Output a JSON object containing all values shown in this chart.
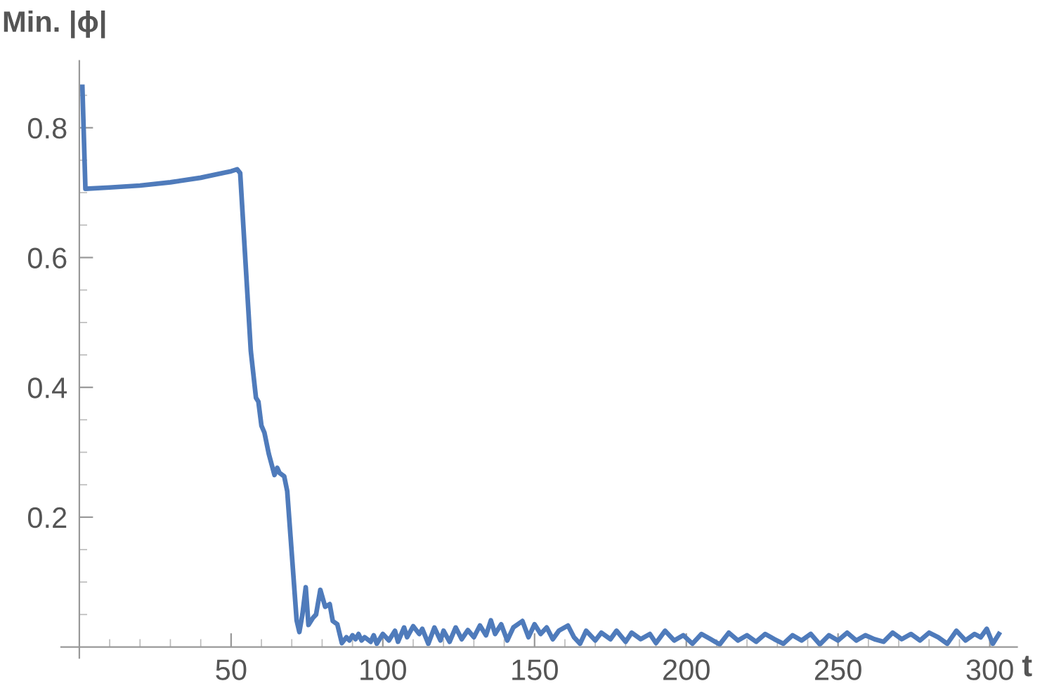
{
  "chart_data": {
    "type": "line",
    "xlabel": "t",
    "ylabel": "Min. |ϕ|",
    "xlim": [
      -6,
      309
    ],
    "ylim": [
      -0.017,
      0.903
    ],
    "xticks": [
      {
        "value": 0,
        "label": null
      },
      {
        "value": 10,
        "label": null
      },
      {
        "value": 20,
        "label": null
      },
      {
        "value": 30,
        "label": null
      },
      {
        "value": 40,
        "label": null
      },
      50,
      {
        "value": 60,
        "label": null
      },
      {
        "value": 70,
        "label": null
      },
      {
        "value": 80,
        "label": null
      },
      {
        "value": 90,
        "label": null
      },
      100,
      {
        "value": 110,
        "label": null
      },
      {
        "value": 120,
        "label": null
      },
      {
        "value": 130,
        "label": null
      },
      {
        "value": 140,
        "label": null
      },
      150,
      {
        "value": 160,
        "label": null
      },
      {
        "value": 170,
        "label": null
      },
      {
        "value": 180,
        "label": null
      },
      {
        "value": 190,
        "label": null
      },
      200,
      {
        "value": 210,
        "label": null
      },
      {
        "value": 220,
        "label": null
      },
      {
        "value": 230,
        "label": null
      },
      {
        "value": 240,
        "label": null
      },
      250,
      {
        "value": 260,
        "label": null
      },
      {
        "value": 270,
        "label": null
      },
      {
        "value": 280,
        "label": null
      },
      {
        "value": 290,
        "label": null
      },
      300
    ],
    "yticks": [
      {
        "value": 0.05,
        "label": null
      },
      {
        "value": 0.1,
        "label": null
      },
      {
        "value": 0.15,
        "label": null
      },
      0.2,
      {
        "value": 0.25,
        "label": null
      },
      {
        "value": 0.3,
        "label": null
      },
      {
        "value": 0.35,
        "label": null
      },
      0.4,
      {
        "value": 0.45,
        "label": null
      },
      {
        "value": 0.5,
        "label": null
      },
      {
        "value": 0.55,
        "label": null
      },
      0.6,
      {
        "value": 0.65,
        "label": null
      },
      {
        "value": 0.7,
        "label": null
      },
      {
        "value": 0.75,
        "label": null
      },
      0.8,
      {
        "value": 0.85,
        "label": null
      }
    ],
    "grid": false,
    "legend": false,
    "marker": "none",
    "line_style": "solid",
    "series": [
      {
        "color": "#4f7bbb",
        "x": [
          1,
          2,
          10,
          20,
          30,
          40,
          48,
          50,
          52,
          53,
          56.5,
          58.2,
          59,
          60,
          61,
          62.4,
          64.3,
          65.2,
          66,
          67.5,
          68.5,
          70.2,
          71.6,
          72.5,
          73.5,
          74.6,
          75.5,
          77,
          78,
          79.4,
          81,
          82.5,
          83.5,
          85,
          86.5,
          88,
          89,
          90,
          91,
          92,
          93,
          94,
          96,
          97,
          98,
          100,
          102,
          104,
          105,
          107,
          108,
          110,
          112,
          113,
          115,
          117,
          119,
          120,
          122,
          124,
          126,
          128,
          130,
          132,
          134,
          135.6,
          137,
          139,
          141,
          143,
          146,
          148,
          150,
          152,
          154,
          156,
          158,
          161,
          163,
          165,
          167,
          170,
          172,
          175,
          177,
          180,
          182,
          185,
          188,
          190,
          193,
          196,
          199,
          202,
          205,
          208,
          211,
          214,
          217,
          220,
          223,
          226,
          229,
          232,
          235,
          238,
          241,
          244,
          247,
          250,
          253,
          256,
          259,
          262,
          265,
          268,
          271,
          274,
          277,
          280,
          283,
          286,
          289,
          292,
          295,
          297,
          299,
          301,
          303
        ],
        "values": [
          0.863,
          0.706,
          0.708,
          0.711,
          0.716,
          0.723,
          0.731,
          0.733,
          0.736,
          0.73,
          0.456,
          0.384,
          0.378,
          0.341,
          0.33,
          0.298,
          0.265,
          0.276,
          0.268,
          0.263,
          0.24,
          0.131,
          0.041,
          0.023,
          0.05,
          0.092,
          0.034,
          0.045,
          0.05,
          0.088,
          0.062,
          0.066,
          0.04,
          0.035,
          0.006,
          0.015,
          0.01,
          0.018,
          0.012,
          0.02,
          0.01,
          0.015,
          0.008,
          0.018,
          0.005,
          0.02,
          0.01,
          0.025,
          0.008,
          0.03,
          0.015,
          0.032,
          0.02,
          0.028,
          0.005,
          0.03,
          0.01,
          0.025,
          0.008,
          0.03,
          0.012,
          0.026,
          0.015,
          0.033,
          0.018,
          0.041,
          0.02,
          0.035,
          0.01,
          0.03,
          0.04,
          0.015,
          0.035,
          0.02,
          0.03,
          0.012,
          0.025,
          0.033,
          0.015,
          0.005,
          0.025,
          0.01,
          0.022,
          0.012,
          0.025,
          0.008,
          0.022,
          0.012,
          0.02,
          0.006,
          0.025,
          0.01,
          0.018,
          0.005,
          0.02,
          0.012,
          0.004,
          0.022,
          0.01,
          0.018,
          0.008,
          0.02,
          0.012,
          0.005,
          0.018,
          0.01,
          0.02,
          0.004,
          0.018,
          0.01,
          0.022,
          0.01,
          0.018,
          0.012,
          0.008,
          0.022,
          0.012,
          0.02,
          0.01,
          0.022,
          0.015,
          0.005,
          0.025,
          0.01,
          0.02,
          0.015,
          0.028,
          0.005,
          0.02
        ]
      }
    ]
  }
}
